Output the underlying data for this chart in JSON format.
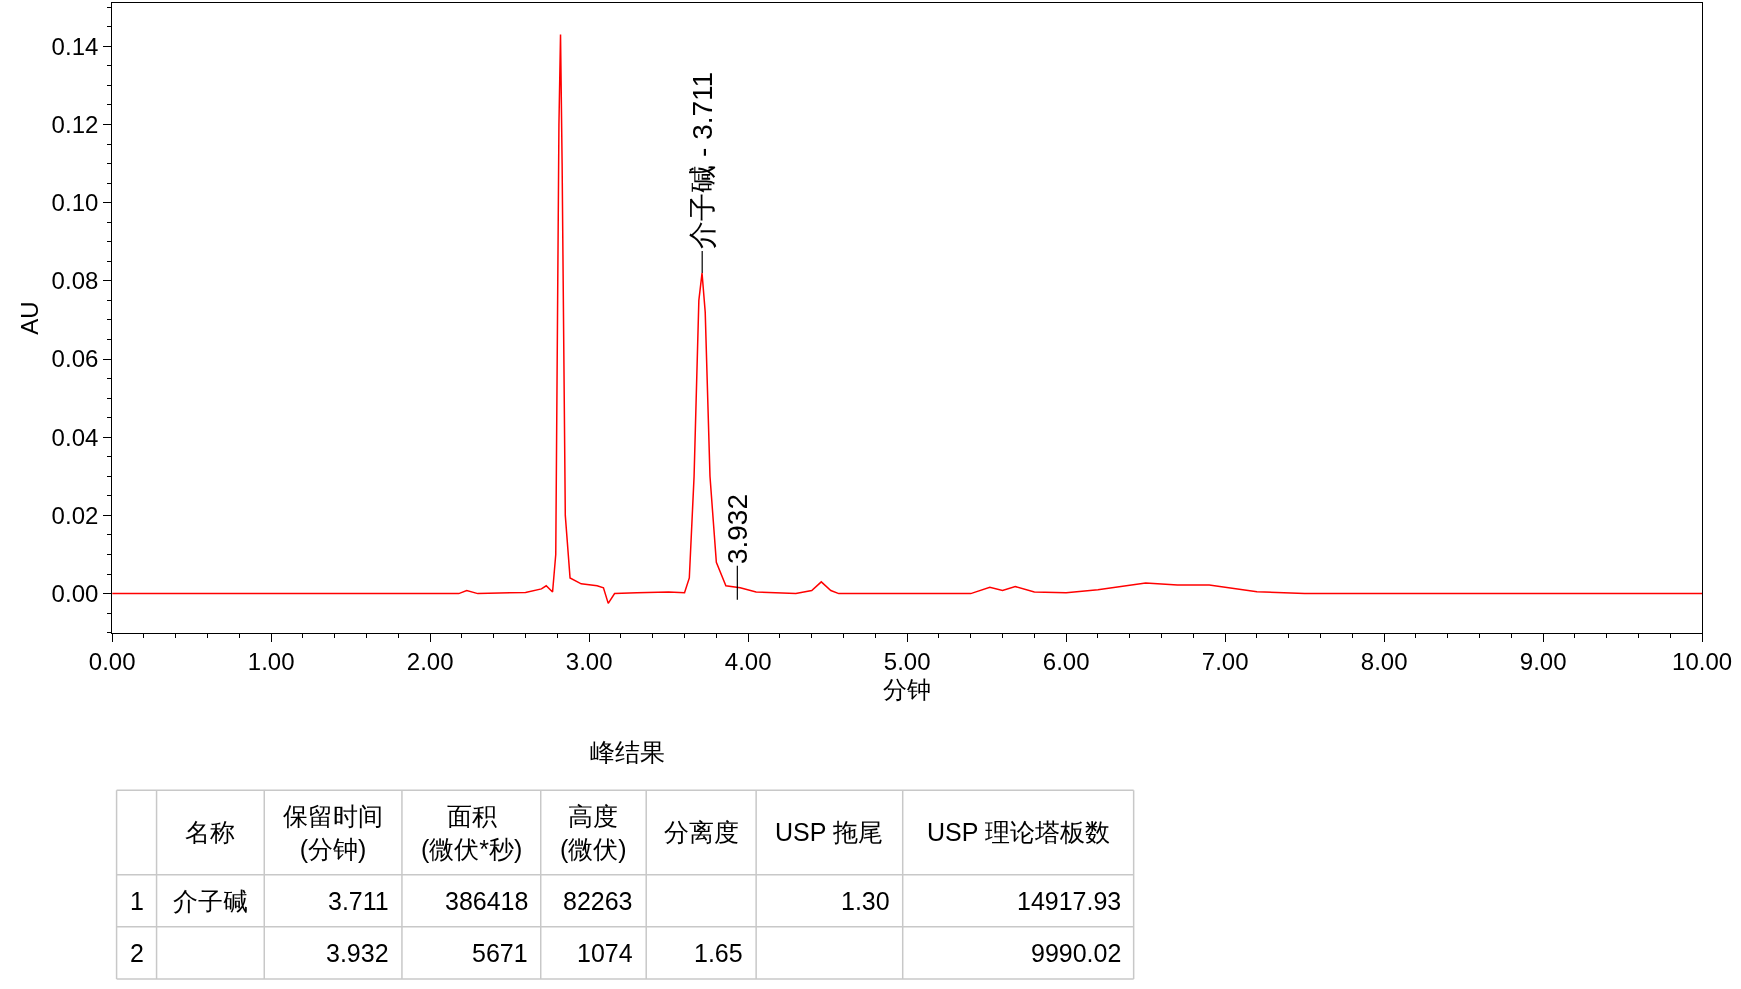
{
  "chart_data": {
    "type": "line",
    "xlabel": "分钟",
    "ylabel": "AU",
    "x": [
      0,
      1,
      2,
      2.18,
      2.23,
      2.3,
      2.6,
      2.7,
      2.73,
      2.77,
      2.79,
      2.81,
      2.82,
      2.83,
      2.85,
      2.88,
      2.95,
      3.05,
      3.09,
      3.12,
      3.16,
      3.3,
      3.5,
      3.6,
      3.63,
      3.66,
      3.69,
      3.71,
      3.73,
      3.76,
      3.8,
      3.86,
      3.95,
      4.05,
      4.3,
      4.4,
      4.46,
      4.52,
      4.57,
      5.0,
      5.4,
      5.52,
      5.6,
      5.68,
      5.8,
      6.0,
      6.2,
      6.5,
      6.7,
      6.9,
      7.2,
      7.5,
      8.5,
      10
    ],
    "series": [
      {
        "color": "#ff0000",
        "values": [
          0,
          0,
          0,
          0,
          0.0008,
          0,
          0.0003,
          0.0012,
          0.002,
          0.0004,
          0.01,
          0.12,
          0.143,
          0.11,
          0.02,
          0.004,
          0.0025,
          0.002,
          0.0015,
          -0.0025,
          0,
          0.0002,
          0.0004,
          0.0002,
          0.004,
          0.03,
          0.075,
          0.082,
          0.072,
          0.03,
          0.008,
          0.002,
          0.0015,
          0.0004,
          0,
          0.0008,
          0.003,
          0.0008,
          0,
          0,
          0,
          0.0016,
          0.0008,
          0.0018,
          0.0004,
          0.0002,
          0.001,
          0.0027,
          0.0022,
          0.0022,
          0.0005,
          0,
          0,
          0
        ]
      }
    ],
    "xlim": [
      0,
      10
    ],
    "xticks": [
      {
        "value": 0,
        "label": "0.00"
      },
      {
        "value": 1,
        "label": "1.00"
      },
      {
        "value": 2,
        "label": "2.00"
      },
      {
        "value": 3,
        "label": "3.00"
      },
      {
        "value": 4,
        "label": "4.00"
      },
      {
        "value": 5,
        "label": "5.00"
      },
      {
        "value": 6,
        "label": "6.00"
      },
      {
        "value": 7,
        "label": "7.00"
      },
      {
        "value": 8,
        "label": "8.00"
      },
      {
        "value": 9,
        "label": "9.00"
      },
      {
        "value": 10,
        "label": "10.00"
      }
    ],
    "ylim": [
      -0.01,
      0.151
    ],
    "yticks": [
      {
        "value": 0,
        "label": "0.00"
      },
      0.02,
      0.04,
      0.06,
      0.08,
      {
        "value": 0.1,
        "label": "0.10"
      },
      0.12,
      0.14
    ],
    "marker": "none",
    "line_style": "solid",
    "annotations": [
      {
        "text": "介子碱 - 3.711",
        "x": 3.711,
        "y": 0.082
      },
      {
        "text": "3.932",
        "x": 3.932,
        "y": 0.0015
      },
      "峰结果",
      "名称",
      "保留时间\n(分钟)",
      "面积\n(微伏*秒)",
      "高度\n(微伏)",
      "分离度",
      "USP 拖尾",
      "USP 理论塔板数",
      "1",
      "介子碱",
      "3.711",
      "386418",
      "82263",
      "1.30",
      "14917.93",
      "2",
      "3.932",
      "5671",
      "1074",
      "1.65",
      "9990.02"
    ]
  }
}
